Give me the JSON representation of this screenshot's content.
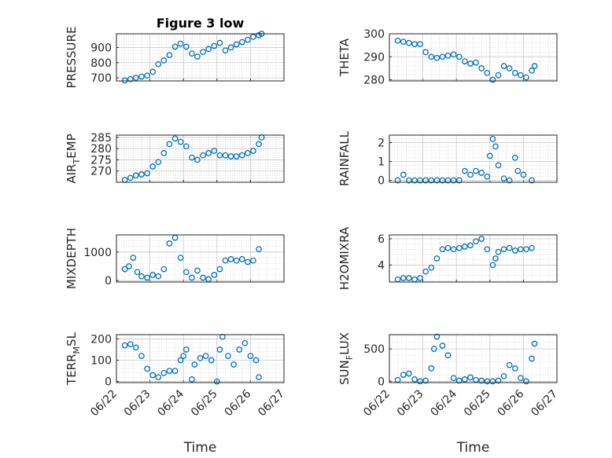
{
  "figure": {
    "title": "Figure 3 low",
    "xlabel": "Time",
    "colors": {
      "marker": "#0072BD",
      "axis": "#262626",
      "grid": "#c8c8c8",
      "background": "#ffffff"
    }
  },
  "chart_data": [
    {
      "id": "pressure",
      "type": "scatter",
      "title": "Figure 3 low",
      "ylabel": "PRESSURE",
      "ylabel_sub": "",
      "ylim": [
        680,
        990
      ],
      "yticks": [
        700,
        800,
        900
      ],
      "ytick_labels": [
        "700",
        "800",
        "900"
      ],
      "xlim": [
        "06/22",
        "06/27"
      ],
      "xticks": [
        "06/22",
        "06/23",
        "06/24",
        "06/25",
        "06/26",
        "06/27"
      ],
      "xtick_labels_shown": false,
      "grid": true,
      "minor_grid": true,
      "marker": "circle-open",
      "x": [
        "06/22 06:00",
        "06/22 10:00",
        "06/22 14:00",
        "06/22 18:00",
        "06/22 22:00",
        "06/23 02:00",
        "06/23 06:00",
        "06/23 10:00",
        "06/23 14:00",
        "06/23 18:00",
        "06/23 22:00",
        "06/24 02:00",
        "06/24 06:00",
        "06/24 10:00",
        "06/24 14:00",
        "06/24 18:00",
        "06/24 22:00",
        "06/25 02:00",
        "06/25 06:00",
        "06/25 10:00",
        "06/25 14:00",
        "06/25 18:00",
        "06/25 22:00",
        "06/26 02:00",
        "06/26 06:00",
        "06/26 08:00"
      ],
      "y": [
        683,
        692,
        700,
        708,
        715,
        740,
        790,
        815,
        850,
        905,
        925,
        905,
        860,
        840,
        870,
        890,
        910,
        930,
        880,
        900,
        920,
        935,
        950,
        970,
        980,
        990
      ]
    },
    {
      "id": "theta",
      "type": "scatter",
      "ylabel": "THETA",
      "ylabel_sub": "",
      "ylim": [
        279.5,
        300
      ],
      "yticks": [
        280,
        290,
        300
      ],
      "ytick_labels": [
        "280",
        "290",
        "300"
      ],
      "xlim": [
        "06/22",
        "06/27"
      ],
      "xticks": [
        "06/22",
        "06/23",
        "06/24",
        "06/25",
        "06/26",
        "06/27"
      ],
      "xtick_labels_shown": false,
      "grid": true,
      "minor_grid": true,
      "marker": "circle-open",
      "x": [
        "06/22 06:00",
        "06/22 10:00",
        "06/22 14:00",
        "06/22 18:00",
        "06/22 22:00",
        "06/23 02:00",
        "06/23 06:00",
        "06/23 10:00",
        "06/23 14:00",
        "06/23 18:00",
        "06/23 22:00",
        "06/24 02:00",
        "06/24 06:00",
        "06/24 10:00",
        "06/24 14:00",
        "06/24 18:00",
        "06/24 22:00",
        "06/25 02:00",
        "06/25 06:00",
        "06/25 10:00",
        "06/25 14:00",
        "06/25 18:00",
        "06/25 22:00",
        "06/26 02:00",
        "06/26 06:00",
        "06/26 08:00"
      ],
      "y": [
        297,
        296.5,
        296,
        295.5,
        295.5,
        292,
        290,
        289.5,
        290,
        290.5,
        291,
        290,
        288,
        287,
        287.5,
        285,
        283,
        280,
        282,
        286,
        285,
        283,
        282,
        281,
        284,
        286
      ]
    },
    {
      "id": "air_temp",
      "type": "scatter",
      "ylabel": "AIR",
      "ylabel_sub": "T",
      "ylabel_rest": "EMP",
      "ylim": [
        265,
        286
      ],
      "yticks": [
        270,
        275,
        280,
        285
      ],
      "ytick_labels": [
        "270",
        "275",
        "280",
        "285"
      ],
      "xlim": [
        "06/22",
        "06/27"
      ],
      "xticks": [
        "06/22",
        "06/23",
        "06/24",
        "06/25",
        "06/26",
        "06/27"
      ],
      "xtick_labels_shown": false,
      "grid": true,
      "minor_grid": true,
      "marker": "circle-open",
      "x": [
        "06/22 06:00",
        "06/22 10:00",
        "06/22 14:00",
        "06/22 18:00",
        "06/22 22:00",
        "06/23 02:00",
        "06/23 06:00",
        "06/23 10:00",
        "06/23 14:00",
        "06/23 18:00",
        "06/23 22:00",
        "06/24 02:00",
        "06/24 06:00",
        "06/24 10:00",
        "06/24 14:00",
        "06/24 18:00",
        "06/24 22:00",
        "06/25 02:00",
        "06/25 06:00",
        "06/25 10:00",
        "06/25 14:00",
        "06/25 18:00",
        "06/25 22:00",
        "06/26 02:00",
        "06/26 06:00",
        "06/26 08:00"
      ],
      "y": [
        266,
        267,
        268,
        268.5,
        269,
        272,
        274,
        278,
        282,
        284.5,
        283,
        281,
        276,
        275,
        277,
        278,
        279,
        277,
        277,
        276.5,
        276.5,
        277,
        278,
        279,
        282,
        285
      ]
    },
    {
      "id": "rainfall",
      "type": "scatter",
      "ylabel": "RAINFALL",
      "ylabel_sub": "",
      "ylim": [
        -0.1,
        2.4
      ],
      "yticks": [
        0,
        1,
        2
      ],
      "ytick_labels": [
        "0",
        "1",
        "2"
      ],
      "xlim": [
        "06/22",
        "06/27"
      ],
      "xticks": [
        "06/22",
        "06/23",
        "06/24",
        "06/25",
        "06/26",
        "06/27"
      ],
      "xtick_labels_shown": false,
      "grid": true,
      "minor_grid": true,
      "marker": "circle-open",
      "x": [
        "06/22 06:00",
        "06/22 10:00",
        "06/22 14:00",
        "06/22 18:00",
        "06/22 22:00",
        "06/23 02:00",
        "06/23 06:00",
        "06/23 10:00",
        "06/23 14:00",
        "06/23 18:00",
        "06/23 22:00",
        "06/24 02:00",
        "06/24 06:00",
        "06/24 10:00",
        "06/24 14:00",
        "06/24 18:00",
        "06/24 22:00",
        "06/25 00:00",
        "06/25 02:00",
        "06/25 04:00",
        "06/25 06:00",
        "06/25 10:00",
        "06/25 14:00",
        "06/25 18:00",
        "06/25 20:00",
        "06/26 00:00",
        "06/26 06:00"
      ],
      "y": [
        0,
        0.3,
        0,
        0,
        0,
        0,
        0,
        0,
        0,
        0,
        0,
        0,
        0.5,
        0.3,
        0.5,
        0.4,
        0.2,
        1.3,
        2.2,
        1.8,
        0.8,
        0.1,
        0,
        1.2,
        0.5,
        0.3,
        0
      ]
    },
    {
      "id": "mixdepth",
      "type": "scatter",
      "ylabel": "MIXDEPTH",
      "ylabel_sub": "",
      "ylim": [
        -50,
        1600
      ],
      "yticks": [
        0,
        1000
      ],
      "ytick_labels": [
        "0",
        "1000"
      ],
      "xlim": [
        "06/22",
        "06/27"
      ],
      "xticks": [
        "06/22",
        "06/23",
        "06/24",
        "06/25",
        "06/26",
        "06/27"
      ],
      "xtick_labels_shown": false,
      "grid": true,
      "minor_grid": true,
      "marker": "circle-open",
      "x": [
        "06/22 06:00",
        "06/22 09:00",
        "06/22 12:00",
        "06/22 15:00",
        "06/22 18:00",
        "06/22 22:00",
        "06/23 02:00",
        "06/23 06:00",
        "06/23 10:00",
        "06/23 14:00",
        "06/23 18:00",
        "06/23 22:00",
        "06/24 02:00",
        "06/24 06:00",
        "06/24 10:00",
        "06/24 14:00",
        "06/24 18:00",
        "06/24 22:00",
        "06/25 02:00",
        "06/25 06:00",
        "06/25 10:00",
        "06/25 14:00",
        "06/25 18:00",
        "06/25 22:00",
        "06/26 02:00",
        "06/26 06:00"
      ],
      "y": [
        400,
        500,
        800,
        300,
        150,
        100,
        200,
        150,
        400,
        1300,
        1500,
        800,
        300,
        100,
        350,
        100,
        50,
        200,
        400,
        700,
        750,
        700,
        750,
        650,
        700,
        1100
      ]
    },
    {
      "id": "h2omixra",
      "type": "scatter",
      "ylabel": "H2OMIXRA",
      "ylabel_sub": "",
      "ylim": [
        2.7,
        6.3
      ],
      "yticks": [
        4,
        6
      ],
      "ytick_labels": [
        "4",
        "6"
      ],
      "xlim": [
        "06/22",
        "06/27"
      ],
      "xticks": [
        "06/22",
        "06/23",
        "06/24",
        "06/25",
        "06/26",
        "06/27"
      ],
      "xtick_labels_shown": false,
      "grid": true,
      "minor_grid": true,
      "marker": "circle-open",
      "x": [
        "06/22 06:00",
        "06/22 10:00",
        "06/22 14:00",
        "06/22 18:00",
        "06/22 22:00",
        "06/23 02:00",
        "06/23 06:00",
        "06/23 10:00",
        "06/23 14:00",
        "06/23 18:00",
        "06/23 22:00",
        "06/24 02:00",
        "06/24 06:00",
        "06/24 10:00",
        "06/24 14:00",
        "06/24 18:00",
        "06/24 22:00",
        "06/25 02:00",
        "06/25 04:00",
        "06/25 06:00",
        "06/25 10:00",
        "06/25 14:00",
        "06/25 18:00",
        "06/25 22:00",
        "06/26 02:00",
        "06/26 06:00"
      ],
      "y": [
        2.9,
        3.0,
        3.0,
        2.9,
        3.0,
        3.5,
        3.8,
        4.5,
        5.2,
        5.3,
        5.2,
        5.3,
        5.4,
        5.5,
        5.8,
        6.0,
        5.2,
        4.0,
        4.5,
        5.0,
        5.2,
        5.3,
        5.1,
        5.2,
        5.2,
        5.3
      ]
    },
    {
      "id": "terr_msl",
      "type": "scatter",
      "ylabel": "TERR",
      "ylabel_sub": "M",
      "ylabel_rest": "SL",
      "ylim": [
        -5,
        220
      ],
      "yticks": [
        0,
        100,
        200
      ],
      "ytick_labels": [
        "0",
        "100",
        "200"
      ],
      "xlim": [
        "06/22",
        "06/27"
      ],
      "xticks": [
        "06/22",
        "06/23",
        "06/24",
        "06/25",
        "06/26",
        "06/27"
      ],
      "xtick_labels": [
        "06/22",
        "06/23",
        "06/24",
        "06/25",
        "06/26",
        "06/27"
      ],
      "xtick_labels_shown": true,
      "grid": true,
      "minor_grid": true,
      "marker": "circle-open",
      "x": [
        "06/22 06:00",
        "06/22 10:00",
        "06/22 14:00",
        "06/22 18:00",
        "06/22 22:00",
        "06/23 02:00",
        "06/23 06:00",
        "06/23 10:00",
        "06/23 14:00",
        "06/23 18:00",
        "06/23 22:00",
        "06/24 00:00",
        "06/24 02:00",
        "06/24 06:00",
        "06/24 08:00",
        "06/24 12:00",
        "06/24 16:00",
        "06/24 20:00",
        "06/25 00:00",
        "06/25 02:00",
        "06/25 04:00",
        "06/25 08:00",
        "06/25 12:00",
        "06/25 16:00",
        "06/25 20:00",
        "06/26 00:00",
        "06/26 04:00",
        "06/26 06:00"
      ],
      "y": [
        170,
        175,
        160,
        120,
        60,
        30,
        20,
        40,
        50,
        50,
        100,
        120,
        150,
        10,
        80,
        110,
        120,
        100,
        0,
        150,
        210,
        120,
        80,
        150,
        180,
        120,
        100,
        20
      ]
    },
    {
      "id": "sun_flux",
      "type": "scatter",
      "ylabel": "SUN",
      "ylabel_sub": "F",
      "ylabel_rest": "LUX",
      "ylim": [
        -20,
        720
      ],
      "yticks": [
        0,
        500
      ],
      "ytick_labels": [
        "0",
        "500"
      ],
      "xlim": [
        "06/22",
        "06/27"
      ],
      "xticks": [
        "06/22",
        "06/23",
        "06/24",
        "06/25",
        "06/26",
        "06/27"
      ],
      "xtick_labels": [
        "06/22",
        "06/23",
        "06/24",
        "06/25",
        "06/26",
        "06/27"
      ],
      "xtick_labels_shown": true,
      "grid": true,
      "minor_grid": true,
      "marker": "circle-open",
      "x": [
        "06/22 06:00",
        "06/22 10:00",
        "06/22 14:00",
        "06/22 18:00",
        "06/22 22:00",
        "06/23 02:00",
        "06/23 06:00",
        "06/23 08:00",
        "06/23 10:00",
        "06/23 14:00",
        "06/23 18:00",
        "06/23 22:00",
        "06/24 02:00",
        "06/24 06:00",
        "06/24 10:00",
        "06/24 14:00",
        "06/24 18:00",
        "06/24 22:00",
        "06/25 02:00",
        "06/25 06:00",
        "06/25 10:00",
        "06/25 14:00",
        "06/25 18:00",
        "06/25 22:00",
        "06/26 02:00",
        "06/26 06:00",
        "06/26 08:00"
      ],
      "y": [
        20,
        100,
        120,
        30,
        0,
        10,
        200,
        500,
        690,
        550,
        400,
        50,
        10,
        30,
        60,
        20,
        10,
        0,
        0,
        10,
        80,
        250,
        200,
        50,
        0,
        350,
        580
      ]
    }
  ]
}
